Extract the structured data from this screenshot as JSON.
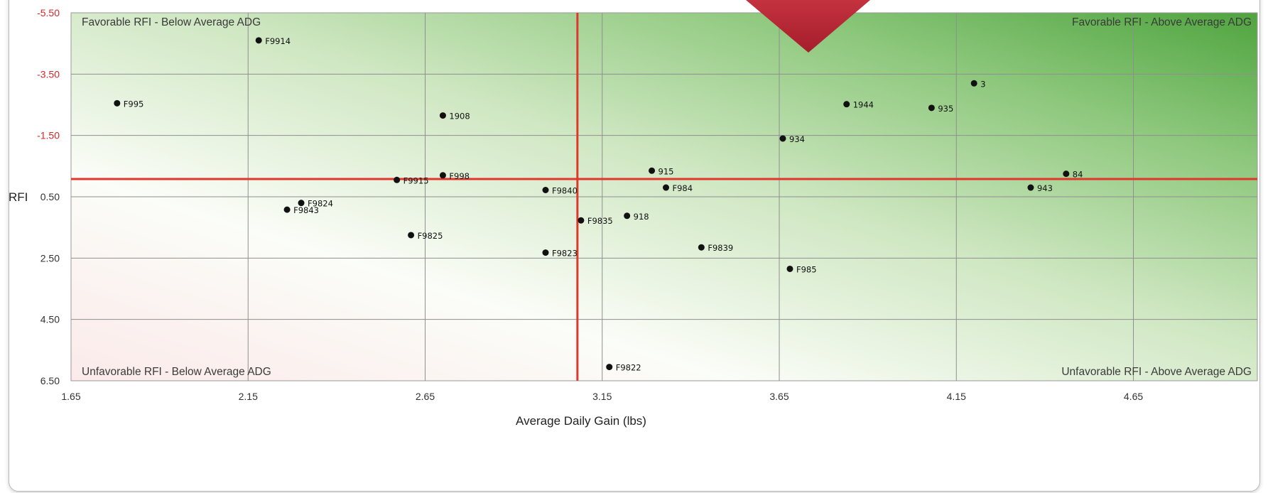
{
  "chart_data": {
    "type": "scatter",
    "title": "",
    "xlabel": "Average Daily Gain (lbs)",
    "ylabel": "RFI",
    "xlim": [
      1.65,
      5.0
    ],
    "ylim": [
      -5.5,
      6.5
    ],
    "y_inverted": true,
    "x_ticks": [
      "1.65",
      "2.15",
      "2.65",
      "3.15",
      "3.65",
      "4.15",
      "4.65"
    ],
    "y_ticks": [
      "-5.50",
      "-3.50",
      "-1.50",
      "0.50",
      "2.50",
      "4.50",
      "6.50"
    ],
    "grid": true,
    "reference_lines": {
      "x": 3.08,
      "y": -0.08,
      "color": "#e0362b"
    },
    "quadrant_labels": {
      "top_left": "Favorable RFI - Below Average ADG",
      "top_right": "Favorable RFI - Above Average ADG",
      "bottom_left": "Unfavorable RFI - Below Average ADG",
      "bottom_right": "Unfavorable RFI - Above Average ADG"
    },
    "points": [
      {
        "label": "F9914",
        "x": 2.18,
        "y": -4.6
      },
      {
        "label": "F995",
        "x": 1.78,
        "y": -2.55
      },
      {
        "label": "1908",
        "x": 2.7,
        "y": -2.15
      },
      {
        "label": "3",
        "x": 4.2,
        "y": -3.2
      },
      {
        "label": "1944",
        "x": 3.84,
        "y": -2.52
      },
      {
        "label": "935",
        "x": 4.08,
        "y": -2.4
      },
      {
        "label": "934",
        "x": 3.66,
        "y": -1.4
      },
      {
        "label": "915",
        "x": 3.29,
        "y": -0.35
      },
      {
        "label": "84",
        "x": 4.46,
        "y": -0.25
      },
      {
        "label": "F998",
        "x": 2.7,
        "y": -0.2
      },
      {
        "label": "F9915",
        "x": 2.57,
        "y": -0.05
      },
      {
        "label": "F984",
        "x": 3.33,
        "y": 0.2
      },
      {
        "label": "943",
        "x": 4.36,
        "y": 0.2
      },
      {
        "label": "F9840",
        "x": 2.99,
        "y": 0.28
      },
      {
        "label": "F9824",
        "x": 2.3,
        "y": 0.7
      },
      {
        "label": "F9843",
        "x": 2.26,
        "y": 0.92
      },
      {
        "label": "918",
        "x": 3.22,
        "y": 1.12
      },
      {
        "label": "F9835",
        "x": 3.09,
        "y": 1.27
      },
      {
        "label": "F9825",
        "x": 2.61,
        "y": 1.75
      },
      {
        "label": "F9839",
        "x": 3.43,
        "y": 2.15
      },
      {
        "label": "F9823",
        "x": 2.99,
        "y": 2.32
      },
      {
        "label": "F985",
        "x": 3.68,
        "y": 2.85
      },
      {
        "label": "F9822",
        "x": 3.17,
        "y": 6.05
      }
    ]
  }
}
